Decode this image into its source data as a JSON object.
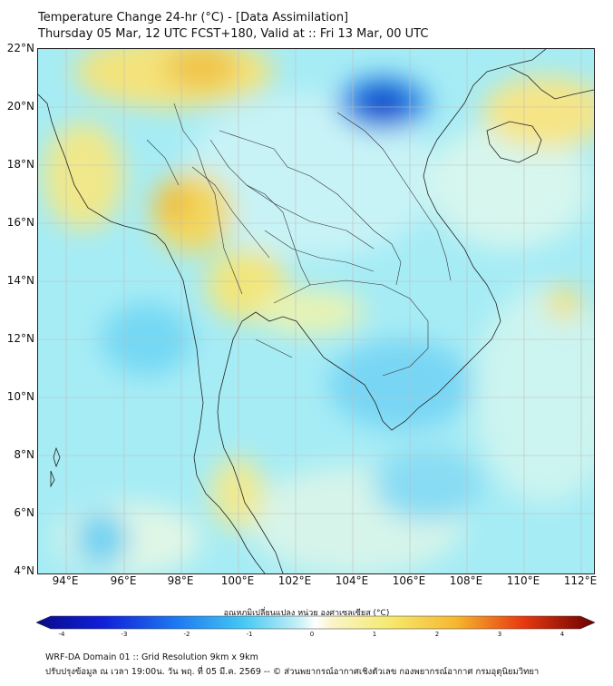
{
  "title_line1": "Temperature Change 24-hr (°C) - [Data Assimilation]",
  "title_line2": "Thursday 05 Mar, 12 UTC FCST+180, Valid at :: Fri 13 Mar, 00 UTC",
  "lat_labels": [
    "22°N",
    "20°N",
    "18°N",
    "16°N",
    "14°N",
    "12°N",
    "10°N",
    "8°N",
    "6°N",
    "4°N"
  ],
  "lon_labels": [
    "94°E",
    "96°E",
    "98°E",
    "100°E",
    "102°E",
    "104°E",
    "106°E",
    "108°E",
    "110°E",
    "112°E"
  ],
  "colorbar": {
    "title": "อุณหภูมิเปลี่ยนแปลง หน่วย องศาเซลเซียส (°C)",
    "ticks": [
      "-4",
      "-3",
      "-2",
      "-1",
      "0",
      "1",
      "2",
      "3",
      "4"
    ]
  },
  "footer_line1": "WRF-DA Domain 01 :: Grid Resolution 9km x 9km",
  "footer_line2": "ปรับปรุงข้อมูล ณ เวลา 19:00น. วัน พฤ. ที่ 05 มี.ค. 2569 -- © ส่วนพยากรณ์อากาศเชิงตัวเลข กองพยากรณ์อากาศ กรมอุตุนิยมวิทยา"
}
